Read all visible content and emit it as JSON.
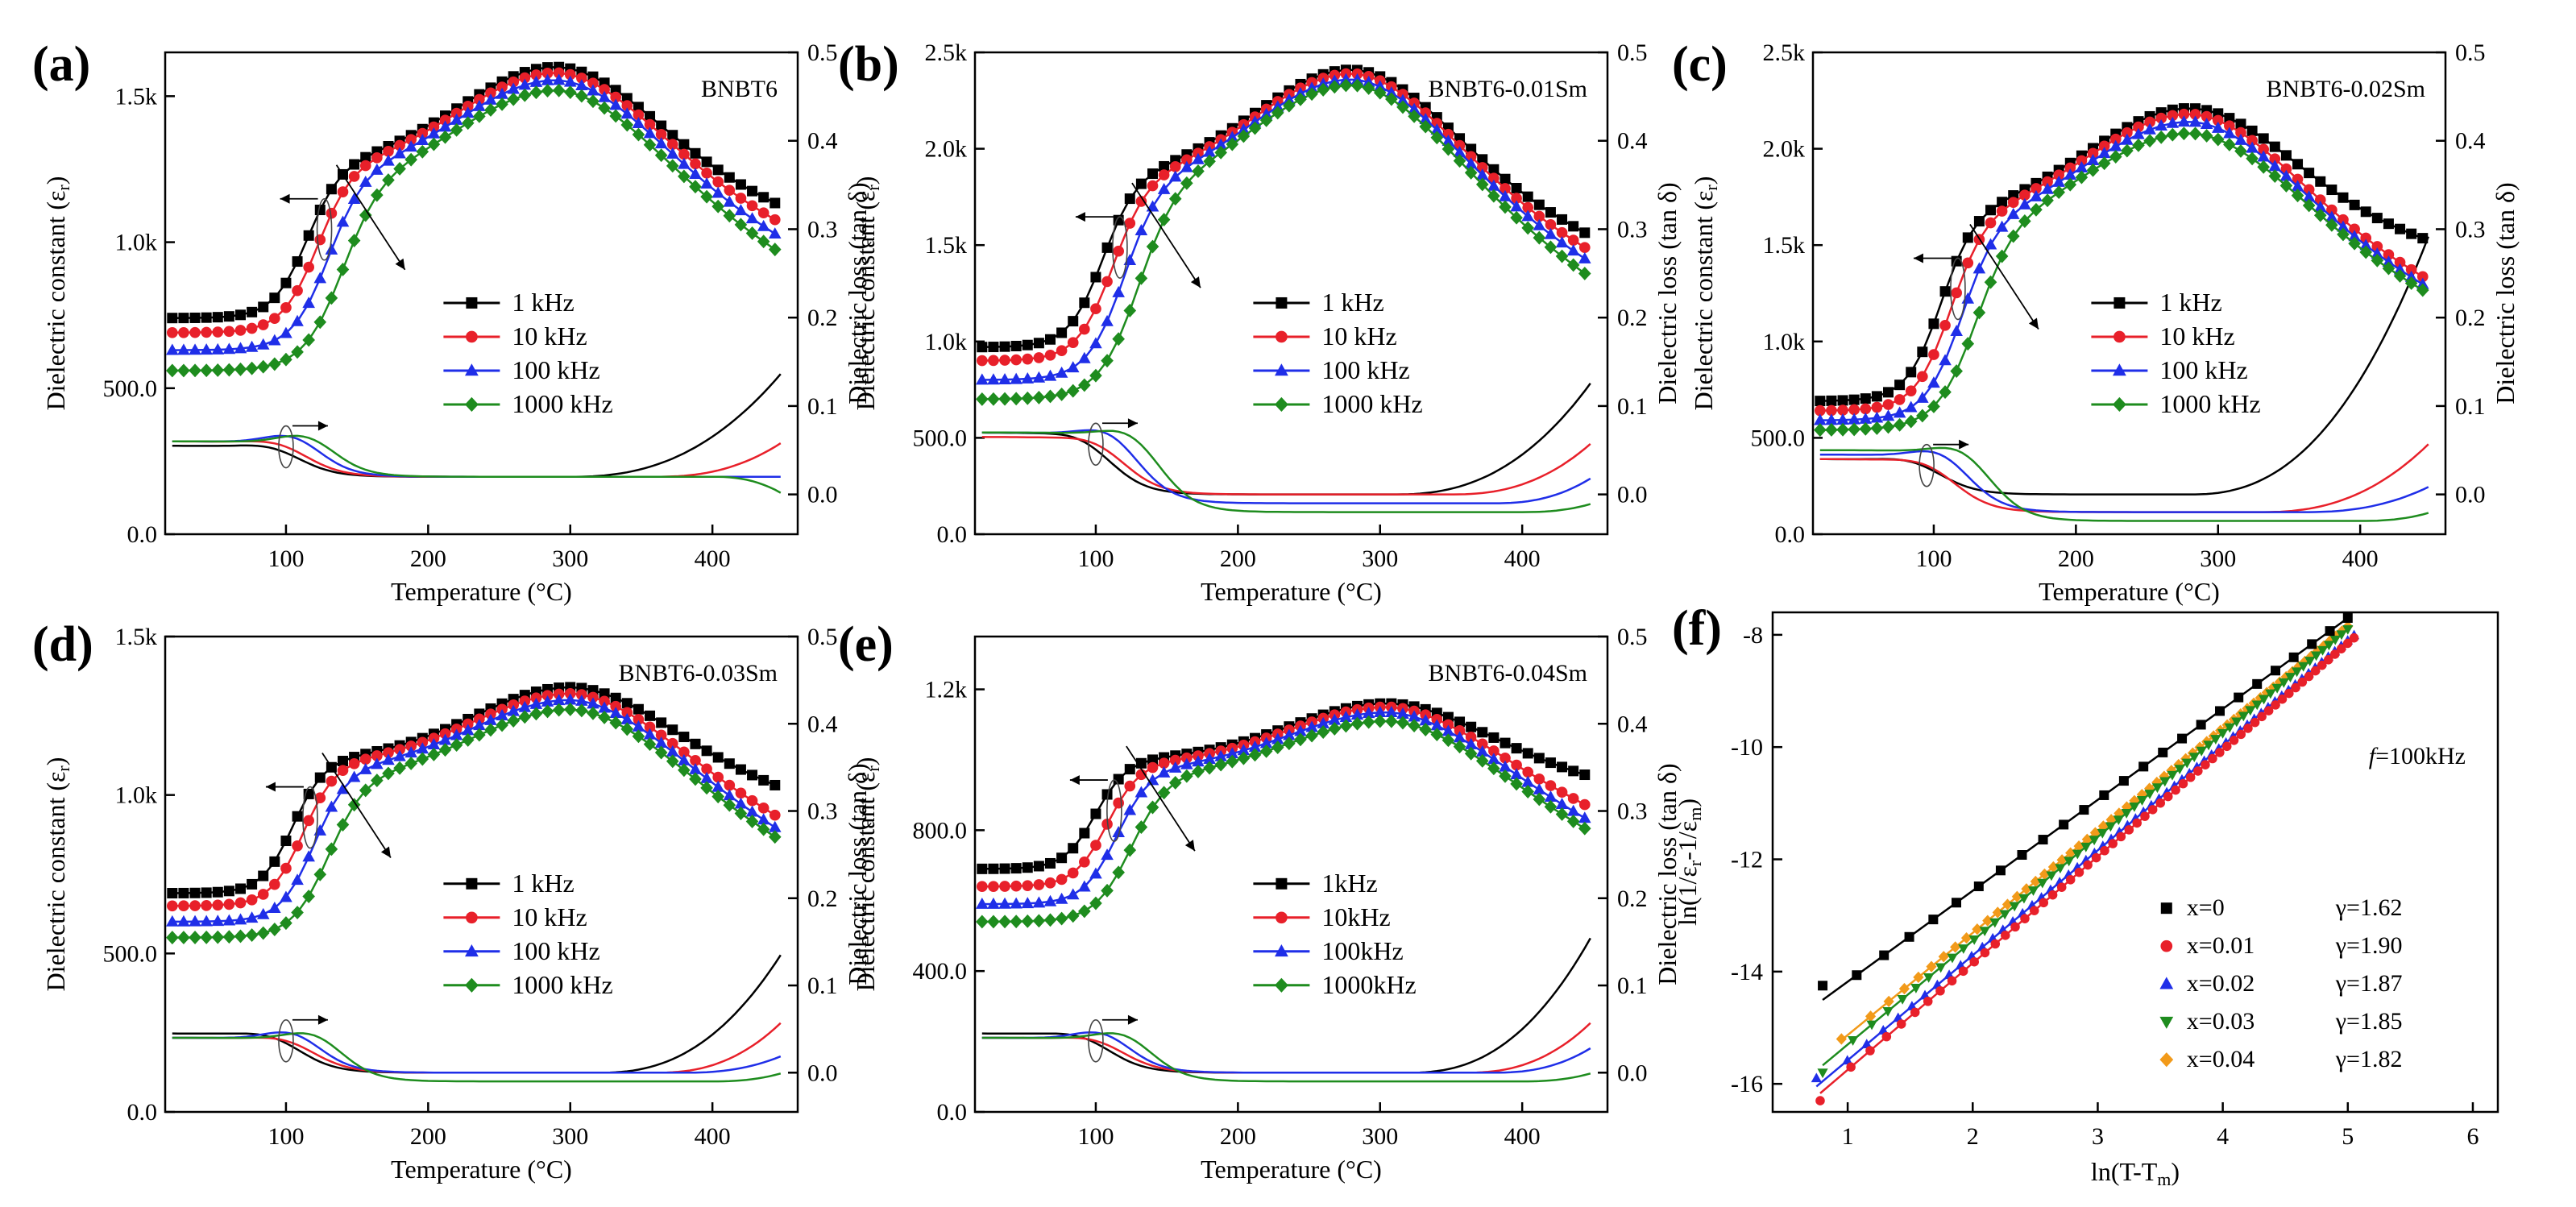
{
  "colors": {
    "black": "#000000",
    "red": "#e8202a",
    "blue": "#1f2ee8",
    "green": "#1e8c1e",
    "orange": "#f29a1a"
  },
  "chart_data": [
    {
      "id": "a",
      "panel_label": "(a)",
      "type": "line",
      "title": "BNBT6",
      "xlabel": "Temperature (°C)",
      "ylabel_left": "Dielectric constant (ε",
      "ylabel_left_sub": "r",
      "ylabel_left_close": ")",
      "ylabel_right": "Dielectric loss (tan δ)",
      "xlim": [
        15,
        460
      ],
      "ylim_left": [
        0,
        1650
      ],
      "ylim_right": [
        -0.045,
        0.5
      ],
      "xticks": [
        100,
        200,
        300,
        400
      ],
      "xtick_labels": [
        "100",
        "200",
        "300",
        "400"
      ],
      "yticks_left": [
        0,
        500,
        1000,
        1500
      ],
      "ytick_labels_left": [
        "0.0",
        "500.0",
        "1.0k",
        "1.5k"
      ],
      "yticks_right": [
        0,
        0.1,
        0.2,
        0.3,
        0.4,
        0.5
      ],
      "ytick_labels_right": [
        "0.0",
        "0.1",
        "0.2",
        "0.3",
        "0.4",
        "0.5"
      ],
      "legend": [
        "1 kHz",
        "10 kHz",
        "100 kHz",
        "1000 kHz"
      ],
      "eps_params": {
        "base": [
          740,
          690,
          630,
          560
        ],
        "max": [
          1600,
          1580,
          1555,
          1520
        ],
        "T1": [
          115,
          122,
          130,
          140
        ],
        "w1": [
          26,
          27,
          28,
          30
        ],
        "shoulder": [
          1260,
          1250,
          1230,
          1200
        ],
        "Tm": 290,
        "wm": 95,
        "end": [
          1120,
          1060,
          1010,
          955
        ],
        "T0": 20,
        "T2": 160,
        "T3": 450
      },
      "loss_params": {
        "start": [
          0.055,
          0.06,
          0.06,
          0.06
        ],
        "Tb": [
          110,
          115,
          125,
          135
        ],
        "wb": [
          30,
          30,
          30,
          30
        ],
        "mid": [
          0.02,
          0.02,
          0.02,
          0.02
        ],
        "end": [
          0.14,
          0.06,
          0.02,
          0.0
        ],
        "Tr": [
          300,
          360,
          380,
          400
        ]
      },
      "arrows_text": ""
    },
    {
      "id": "b",
      "panel_label": "(b)",
      "type": "line",
      "title": "BNBT6-0.01Sm",
      "xlabel": "Temperature (°C)",
      "ylabel_left": "Dielectric constant (ε",
      "ylabel_left_sub": "r",
      "ylabel_left_close": ")",
      "ylabel_right": "Dielectric loss (tan δ)",
      "xlim": [
        15,
        460
      ],
      "ylim_left": [
        0,
        2500
      ],
      "ylim_right": [
        -0.045,
        0.5
      ],
      "xticks": [
        100,
        200,
        300,
        400
      ],
      "xtick_labels": [
        "100",
        "200",
        "300",
        "400"
      ],
      "yticks_left": [
        0,
        500,
        1000,
        1500,
        2000,
        2500
      ],
      "ytick_labels_left": [
        "0.0",
        "500.0",
        "1.0k",
        "1.5k",
        "2.0k",
        "2.5k"
      ],
      "yticks_right": [
        0,
        0.1,
        0.2,
        0.3,
        0.4,
        0.5
      ],
      "ytick_labels_right": [
        "0.0",
        "0.1",
        "0.2",
        "0.3",
        "0.4",
        "0.5"
      ],
      "legend": [
        "1 kHz",
        "10 kHz",
        "100 kHz",
        "1000 kHz"
      ],
      "eps_params": {
        "base": [
          970,
          900,
          800,
          700
        ],
        "max": [
          2410,
          2390,
          2360,
          2330
        ],
        "T1": [
          105,
          112,
          120,
          130
        ],
        "w1": [
          26,
          27,
          28,
          30
        ],
        "shoulder": [
          1850,
          1830,
          1810,
          1780
        ],
        "Tm": 280,
        "wm": 95,
        "end": [
          1540,
          1460,
          1400,
          1320
        ],
        "T0": 20,
        "T2": 160,
        "T3": 450
      },
      "loss_params": {
        "start": [
          0.07,
          0.065,
          0.07,
          0.07
        ],
        "Tb": [
          110,
          120,
          130,
          145
        ],
        "wb": [
          30,
          30,
          30,
          30
        ],
        "mid": [
          0.0,
          0.0,
          -0.01,
          -0.02
        ],
        "end": [
          0.13,
          0.06,
          0.02,
          -0.01
        ],
        "Tr": [
          310,
          350,
          380,
          400
        ]
      },
      "arrows_text": ""
    },
    {
      "id": "c",
      "panel_label": "(c)",
      "type": "line",
      "title": "BNBT6-0.02Sm",
      "xlabel": "Temperature (°C)",
      "ylabel_left": "Dielectric constant (ε",
      "ylabel_left_sub": "r",
      "ylabel_left_close": ")",
      "ylabel_right": "Dielectric loss (tan δ)",
      "xlim": [
        15,
        460
      ],
      "ylim_left": [
        0,
        2500
      ],
      "ylim_right": [
        -0.045,
        0.5
      ],
      "xticks": [
        100,
        200,
        300,
        400
      ],
      "xtick_labels": [
        "100",
        "200",
        "300",
        "400"
      ],
      "yticks_left": [
        0,
        500,
        1000,
        1500,
        2000,
        2500
      ],
      "ytick_labels_left": [
        "0.0",
        "500.0",
        "1.0k",
        "1.5k",
        "2.0k",
        "2.5k"
      ],
      "yticks_right": [
        0,
        0.1,
        0.2,
        0.3,
        0.4,
        0.5
      ],
      "ytick_labels_right": [
        "0.0",
        "0.1",
        "0.2",
        "0.3",
        "0.4",
        "0.5"
      ],
      "legend": [
        "1 kHz",
        "10 kHz",
        "100 kHz",
        "1000 kHz"
      ],
      "eps_params": {
        "base": [
          690,
          640,
          590,
          540
        ],
        "max": [
          2210,
          2180,
          2140,
          2080
        ],
        "T1": [
          105,
          112,
          120,
          130
        ],
        "w1": [
          26,
          27,
          28,
          30
        ],
        "shoulder": [
          1650,
          1630,
          1600,
          1570
        ],
        "Tm": 280,
        "wm": 100,
        "end": [
          1520,
          1310,
          1270,
          1240
        ],
        "T0": 20,
        "T2": 160,
        "T3": 450
      },
      "loss_params": {
        "start": [
          0.04,
          0.04,
          0.045,
          0.05
        ],
        "Tb": [
          105,
          115,
          125,
          140
        ],
        "wb": [
          30,
          30,
          30,
          30
        ],
        "mid": [
          0.0,
          -0.02,
          -0.02,
          -0.03
        ],
        "end": [
          0.3,
          0.06,
          0.01,
          -0.02
        ],
        "Tr": [
          280,
          330,
          360,
          400
        ]
      },
      "arrows_text": ""
    },
    {
      "id": "d",
      "panel_label": "(d)",
      "type": "line",
      "title": "BNBT6-0.03Sm",
      "xlabel": "Temperature (°C)",
      "ylabel_left": "Dielectric constant (ε",
      "ylabel_left_sub": "r",
      "ylabel_left_close": ")",
      "ylabel_right": "Dielectric loss (tan δ)",
      "xlim": [
        15,
        460
      ],
      "ylim_left": [
        0,
        1500
      ],
      "ylim_right": [
        -0.045,
        0.5
      ],
      "xticks": [
        100,
        200,
        300,
        400
      ],
      "xtick_labels": [
        "100",
        "200",
        "300",
        "400"
      ],
      "yticks_left": [
        0,
        500,
        1000,
        1500
      ],
      "ytick_labels_left": [
        "0.0",
        "500.0",
        "1.0k",
        "1.5k"
      ],
      "yticks_right": [
        0,
        0.1,
        0.2,
        0.3,
        0.4,
        0.5
      ],
      "ytick_labels_right": [
        "0.0",
        "0.1",
        "0.2",
        "0.3",
        "0.4",
        "0.5"
      ],
      "legend": [
        "1 kHz",
        "10 kHz",
        "100 kHz",
        "1000 kHz"
      ],
      "eps_params": {
        "base": [
          690,
          650,
          600,
          550
        ],
        "max": [
          1340,
          1320,
          1300,
          1270
        ],
        "T1": [
          105,
          112,
          120,
          130
        ],
        "w1": [
          24,
          25,
          26,
          28
        ],
        "shoulder": [
          1110,
          1100,
          1080,
          1050
        ],
        "Tm": 300,
        "wm": 95,
        "end": [
          1020,
          920,
          880,
          850
        ],
        "T0": 20,
        "T2": 160,
        "T3": 450
      },
      "loss_params": {
        "start": [
          0.045,
          0.04,
          0.04,
          0.04
        ],
        "Tb": [
          110,
          120,
          125,
          140
        ],
        "wb": [
          30,
          30,
          30,
          30
        ],
        "mid": [
          0.0,
          0.0,
          0.0,
          -0.01
        ],
        "end": [
          0.14,
          0.06,
          0.02,
          0.0
        ],
        "Tr": [
          320,
          360,
          380,
          400
        ]
      },
      "arrows_text": ""
    },
    {
      "id": "e",
      "panel_label": "(e)",
      "type": "line",
      "title": "BNBT6-0.04Sm",
      "xlabel": "Temperature (°C)",
      "ylabel_left": "Dielectric constant (ε",
      "ylabel_left_sub": "r",
      "ylabel_left_close": ")",
      "ylabel_right": "Dielectric loss (tan δ)",
      "xlim": [
        15,
        460
      ],
      "ylim_left": [
        0,
        1350
      ],
      "ylim_right": [
        -0.045,
        0.5
      ],
      "xticks": [
        100,
        200,
        300,
        400
      ],
      "xtick_labels": [
        "100",
        "200",
        "300",
        "400"
      ],
      "yticks_left": [
        0,
        400,
        800,
        1200
      ],
      "ytick_labels_left": [
        "0.0",
        "400.0",
        "800.0",
        "1.2k"
      ],
      "yticks_right": [
        0,
        0.1,
        0.2,
        0.3,
        0.4,
        0.5
      ],
      "ytick_labels_right": [
        "0.0",
        "0.1",
        "0.2",
        "0.3",
        "0.4",
        "0.5"
      ],
      "legend": [
        "1kHz",
        "10kHz",
        "100kHz",
        "1000kHz"
      ],
      "eps_params": {
        "base": [
          690,
          640,
          590,
          540
        ],
        "max": [
          1160,
          1150,
          1135,
          1110
        ],
        "T1": [
          100,
          108,
          115,
          125
        ],
        "w1": [
          24,
          25,
          26,
          28
        ],
        "shoulder": [
          1000,
          990,
          975,
          955
        ],
        "Tm": 305,
        "wm": 95,
        "end": [
          950,
          860,
          820,
          790
        ],
        "T0": 20,
        "T2": 160,
        "T3": 450
      },
      "loss_params": {
        "start": [
          0.045,
          0.04,
          0.04,
          0.04
        ],
        "Tb": [
          110,
          120,
          125,
          140
        ],
        "wb": [
          30,
          30,
          30,
          30
        ],
        "mid": [
          0.0,
          0.0,
          0.0,
          -0.01
        ],
        "end": [
          0.16,
          0.06,
          0.03,
          0.0
        ],
        "Tr": [
          320,
          360,
          380,
          400
        ]
      },
      "arrows_text": ""
    },
    {
      "id": "f",
      "panel_label": "(f)",
      "type": "scatter",
      "title": "",
      "annotation_italic": "f",
      "annotation_rest": "=100kHz",
      "xlabel": "ln(T-T",
      "xlabel_sub": "m",
      "xlabel_close": ")",
      "ylabel": "ln(1/ε",
      "ylabel_sub1": "r",
      "ylabel_mid": "-1/ε",
      "ylabel_sub2": "m",
      "ylabel_close": ")",
      "xlim": [
        0.4,
        6.2
      ],
      "ylim": [
        -16.5,
        -7.6
      ],
      "xticks": [
        1,
        2,
        3,
        4,
        5,
        6
      ],
      "xtick_labels": [
        "1",
        "2",
        "3",
        "4",
        "5",
        "6"
      ],
      "yticks": [
        -16,
        -14,
        -12,
        -10,
        -8
      ],
      "ytick_labels": [
        "-16",
        "-14",
        "-12",
        "-10",
        "-8"
      ],
      "series": [
        {
          "name": "x=0",
          "gamma": "γ=1.62",
          "x_range": [
            0.8,
            5.0
          ],
          "y_start": -14.25,
          "slope": 1.62,
          "intercept": -15.8,
          "fit_x": [
            0.8,
            5.0
          ]
        },
        {
          "name": "x=0.01",
          "gamma": "γ=1.90",
          "x_range": [
            0.78,
            5.05
          ],
          "y_start": -16.3,
          "slope": 1.9,
          "intercept": -17.65,
          "fit_x": [
            0.78,
            5.05
          ]
        },
        {
          "name": "x=0.02",
          "gamma": "γ=1.87",
          "x_range": [
            0.75,
            5.05
          ],
          "y_start": -15.9,
          "slope": 1.87,
          "intercept": -17.45,
          "fit_x": [
            0.75,
            5.05
          ]
        },
        {
          "name": "x=0.03",
          "gamma": "γ=1.85",
          "x_range": [
            0.8,
            5.0
          ],
          "y_start": -15.8,
          "slope": 1.85,
          "intercept": -17.15,
          "fit_x": [
            0.8,
            5.0
          ]
        },
        {
          "name": "x=0.04",
          "gamma": "γ=1.82",
          "x_range": [
            0.95,
            5.0
          ],
          "y_start": -15.2,
          "slope": 1.82,
          "intercept": -16.95,
          "fit_x": [
            0.95,
            5.0
          ]
        }
      ]
    }
  ]
}
